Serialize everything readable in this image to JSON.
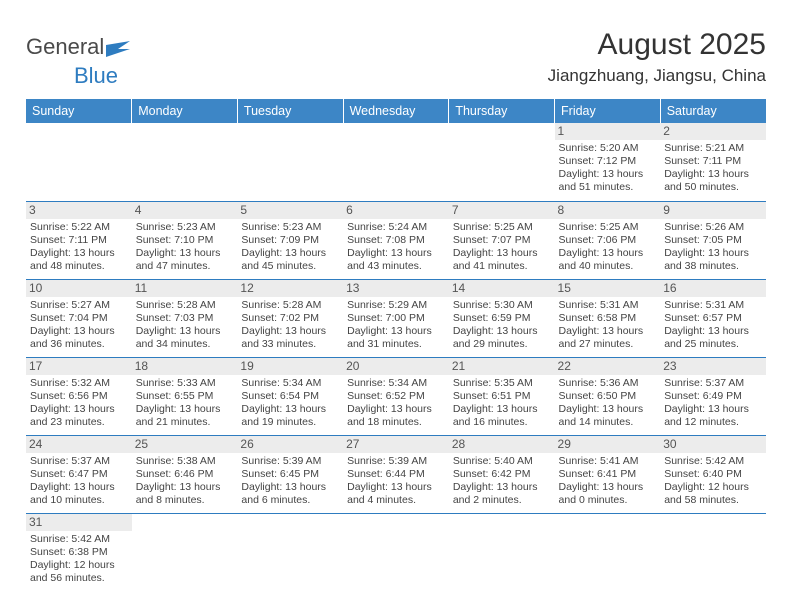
{
  "logo": {
    "word1": "General",
    "word2": "Blue",
    "flag_color": "#2e7cc0"
  },
  "title": "August 2025",
  "location": "Jiangzhuang, Jiangsu, China",
  "colors": {
    "header_bg": "#3d86c6",
    "border": "#2e7cc0",
    "daynum_bg": "#ececec"
  },
  "day_headers": [
    "Sunday",
    "Monday",
    "Tuesday",
    "Wednesday",
    "Thursday",
    "Friday",
    "Saturday"
  ],
  "weeks": [
    [
      null,
      null,
      null,
      null,
      null,
      {
        "n": "1",
        "sr": "Sunrise: 5:20 AM",
        "ss": "Sunset: 7:12 PM",
        "d1": "Daylight: 13 hours",
        "d2": "and 51 minutes."
      },
      {
        "n": "2",
        "sr": "Sunrise: 5:21 AM",
        "ss": "Sunset: 7:11 PM",
        "d1": "Daylight: 13 hours",
        "d2": "and 50 minutes."
      }
    ],
    [
      {
        "n": "3",
        "sr": "Sunrise: 5:22 AM",
        "ss": "Sunset: 7:11 PM",
        "d1": "Daylight: 13 hours",
        "d2": "and 48 minutes."
      },
      {
        "n": "4",
        "sr": "Sunrise: 5:23 AM",
        "ss": "Sunset: 7:10 PM",
        "d1": "Daylight: 13 hours",
        "d2": "and 47 minutes."
      },
      {
        "n": "5",
        "sr": "Sunrise: 5:23 AM",
        "ss": "Sunset: 7:09 PM",
        "d1": "Daylight: 13 hours",
        "d2": "and 45 minutes."
      },
      {
        "n": "6",
        "sr": "Sunrise: 5:24 AM",
        "ss": "Sunset: 7:08 PM",
        "d1": "Daylight: 13 hours",
        "d2": "and 43 minutes."
      },
      {
        "n": "7",
        "sr": "Sunrise: 5:25 AM",
        "ss": "Sunset: 7:07 PM",
        "d1": "Daylight: 13 hours",
        "d2": "and 41 minutes."
      },
      {
        "n": "8",
        "sr": "Sunrise: 5:25 AM",
        "ss": "Sunset: 7:06 PM",
        "d1": "Daylight: 13 hours",
        "d2": "and 40 minutes."
      },
      {
        "n": "9",
        "sr": "Sunrise: 5:26 AM",
        "ss": "Sunset: 7:05 PM",
        "d1": "Daylight: 13 hours",
        "d2": "and 38 minutes."
      }
    ],
    [
      {
        "n": "10",
        "sr": "Sunrise: 5:27 AM",
        "ss": "Sunset: 7:04 PM",
        "d1": "Daylight: 13 hours",
        "d2": "and 36 minutes."
      },
      {
        "n": "11",
        "sr": "Sunrise: 5:28 AM",
        "ss": "Sunset: 7:03 PM",
        "d1": "Daylight: 13 hours",
        "d2": "and 34 minutes."
      },
      {
        "n": "12",
        "sr": "Sunrise: 5:28 AM",
        "ss": "Sunset: 7:02 PM",
        "d1": "Daylight: 13 hours",
        "d2": "and 33 minutes."
      },
      {
        "n": "13",
        "sr": "Sunrise: 5:29 AM",
        "ss": "Sunset: 7:00 PM",
        "d1": "Daylight: 13 hours",
        "d2": "and 31 minutes."
      },
      {
        "n": "14",
        "sr": "Sunrise: 5:30 AM",
        "ss": "Sunset: 6:59 PM",
        "d1": "Daylight: 13 hours",
        "d2": "and 29 minutes."
      },
      {
        "n": "15",
        "sr": "Sunrise: 5:31 AM",
        "ss": "Sunset: 6:58 PM",
        "d1": "Daylight: 13 hours",
        "d2": "and 27 minutes."
      },
      {
        "n": "16",
        "sr": "Sunrise: 5:31 AM",
        "ss": "Sunset: 6:57 PM",
        "d1": "Daylight: 13 hours",
        "d2": "and 25 minutes."
      }
    ],
    [
      {
        "n": "17",
        "sr": "Sunrise: 5:32 AM",
        "ss": "Sunset: 6:56 PM",
        "d1": "Daylight: 13 hours",
        "d2": "and 23 minutes."
      },
      {
        "n": "18",
        "sr": "Sunrise: 5:33 AM",
        "ss": "Sunset: 6:55 PM",
        "d1": "Daylight: 13 hours",
        "d2": "and 21 minutes."
      },
      {
        "n": "19",
        "sr": "Sunrise: 5:34 AM",
        "ss": "Sunset: 6:54 PM",
        "d1": "Daylight: 13 hours",
        "d2": "and 19 minutes."
      },
      {
        "n": "20",
        "sr": "Sunrise: 5:34 AM",
        "ss": "Sunset: 6:52 PM",
        "d1": "Daylight: 13 hours",
        "d2": "and 18 minutes."
      },
      {
        "n": "21",
        "sr": "Sunrise: 5:35 AM",
        "ss": "Sunset: 6:51 PM",
        "d1": "Daylight: 13 hours",
        "d2": "and 16 minutes."
      },
      {
        "n": "22",
        "sr": "Sunrise: 5:36 AM",
        "ss": "Sunset: 6:50 PM",
        "d1": "Daylight: 13 hours",
        "d2": "and 14 minutes."
      },
      {
        "n": "23",
        "sr": "Sunrise: 5:37 AM",
        "ss": "Sunset: 6:49 PM",
        "d1": "Daylight: 13 hours",
        "d2": "and 12 minutes."
      }
    ],
    [
      {
        "n": "24",
        "sr": "Sunrise: 5:37 AM",
        "ss": "Sunset: 6:47 PM",
        "d1": "Daylight: 13 hours",
        "d2": "and 10 minutes."
      },
      {
        "n": "25",
        "sr": "Sunrise: 5:38 AM",
        "ss": "Sunset: 6:46 PM",
        "d1": "Daylight: 13 hours",
        "d2": "and 8 minutes."
      },
      {
        "n": "26",
        "sr": "Sunrise: 5:39 AM",
        "ss": "Sunset: 6:45 PM",
        "d1": "Daylight: 13 hours",
        "d2": "and 6 minutes."
      },
      {
        "n": "27",
        "sr": "Sunrise: 5:39 AM",
        "ss": "Sunset: 6:44 PM",
        "d1": "Daylight: 13 hours",
        "d2": "and 4 minutes."
      },
      {
        "n": "28",
        "sr": "Sunrise: 5:40 AM",
        "ss": "Sunset: 6:42 PM",
        "d1": "Daylight: 13 hours",
        "d2": "and 2 minutes."
      },
      {
        "n": "29",
        "sr": "Sunrise: 5:41 AM",
        "ss": "Sunset: 6:41 PM",
        "d1": "Daylight: 13 hours",
        "d2": "and 0 minutes."
      },
      {
        "n": "30",
        "sr": "Sunrise: 5:42 AM",
        "ss": "Sunset: 6:40 PM",
        "d1": "Daylight: 12 hours",
        "d2": "and 58 minutes."
      }
    ],
    [
      {
        "n": "31",
        "sr": "Sunrise: 5:42 AM",
        "ss": "Sunset: 6:38 PM",
        "d1": "Daylight: 12 hours",
        "d2": "and 56 minutes."
      },
      null,
      null,
      null,
      null,
      null,
      null
    ]
  ]
}
